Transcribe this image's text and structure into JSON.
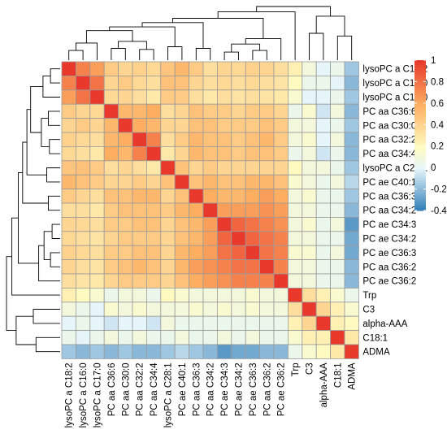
{
  "chart_data": {
    "type": "heatmap",
    "variables": [
      "lysoPC a C18:2",
      "lysoPC a C16:0",
      "lysoPC a C17:0",
      "PC aa C36:6",
      "PC aa C30:0",
      "PC aa C32:2",
      "PC aa C34:4",
      "lysoPC a C28:1",
      "PC ae C40:1",
      "PC aa C36:3",
      "PC aa C34:2",
      "PC ae C34:3",
      "PC ae C34:2",
      "PC ae C36:3",
      "PC aa C36:2",
      "PC ae C36:2",
      "Trp",
      "C3",
      "alpha-AAA",
      "C18:1",
      "ADMA"
    ],
    "values": [
      [
        1.0,
        0.75,
        0.65,
        0.45,
        0.4,
        0.42,
        0.38,
        0.48,
        0.55,
        0.45,
        0.35,
        0.4,
        0.38,
        0.42,
        0.4,
        0.35,
        0.25,
        0.1,
        0.0,
        0.05,
        -0.15
      ],
      [
        0.75,
        1.0,
        0.8,
        0.4,
        0.45,
        0.38,
        0.35,
        0.5,
        0.5,
        0.4,
        0.35,
        0.38,
        0.35,
        0.38,
        0.35,
        0.32,
        0.2,
        0.05,
        0.05,
        0.0,
        -0.2
      ],
      [
        0.65,
        0.8,
        1.0,
        0.38,
        0.4,
        0.35,
        0.3,
        0.45,
        0.45,
        0.35,
        0.3,
        0.35,
        0.32,
        0.35,
        0.32,
        0.3,
        0.15,
        0.0,
        0.0,
        0.05,
        -0.15
      ],
      [
        0.45,
        0.4,
        0.38,
        1.0,
        0.55,
        0.55,
        0.6,
        0.35,
        0.4,
        0.5,
        0.45,
        0.45,
        0.4,
        0.45,
        0.45,
        0.4,
        0.05,
        0.15,
        -0.05,
        0.1,
        -0.2
      ],
      [
        0.4,
        0.45,
        0.4,
        0.55,
        1.0,
        0.6,
        0.55,
        0.4,
        0.4,
        0.5,
        0.5,
        0.45,
        0.45,
        0.45,
        0.5,
        0.45,
        0.1,
        0.1,
        0.0,
        0.05,
        -0.15
      ],
      [
        0.42,
        0.38,
        0.35,
        0.55,
        0.6,
        1.0,
        0.75,
        0.35,
        0.45,
        0.55,
        0.5,
        0.5,
        0.45,
        0.5,
        0.55,
        0.45,
        0.1,
        0.15,
        0.0,
        0.1,
        -0.2
      ],
      [
        0.38,
        0.35,
        0.3,
        0.6,
        0.55,
        0.75,
        1.0,
        0.3,
        0.4,
        0.55,
        0.5,
        0.5,
        0.45,
        0.5,
        0.5,
        0.45,
        0.05,
        0.1,
        -0.05,
        0.05,
        -0.2
      ],
      [
        0.48,
        0.5,
        0.45,
        0.35,
        0.4,
        0.35,
        0.3,
        1.0,
        0.5,
        0.4,
        0.45,
        0.4,
        0.4,
        0.4,
        0.4,
        0.4,
        0.2,
        0.1,
        0.1,
        0.05,
        -0.15
      ],
      [
        0.55,
        0.5,
        0.45,
        0.4,
        0.4,
        0.45,
        0.4,
        0.5,
        1.0,
        0.5,
        0.55,
        0.5,
        0.5,
        0.55,
        0.55,
        0.5,
        0.15,
        0.1,
        0.05,
        0.1,
        -0.1
      ],
      [
        0.45,
        0.4,
        0.35,
        0.5,
        0.5,
        0.55,
        0.55,
        0.4,
        0.5,
        1.0,
        0.6,
        0.55,
        0.55,
        0.6,
        0.65,
        0.6,
        0.1,
        0.15,
        0.05,
        0.05,
        -0.15
      ],
      [
        0.35,
        0.35,
        0.3,
        0.45,
        0.5,
        0.5,
        0.5,
        0.45,
        0.55,
        0.6,
        1.0,
        0.65,
        0.65,
        0.65,
        0.7,
        0.65,
        0.1,
        0.1,
        0.05,
        0.05,
        -0.2
      ],
      [
        0.4,
        0.38,
        0.35,
        0.45,
        0.45,
        0.5,
        0.5,
        0.4,
        0.5,
        0.55,
        0.65,
        1.0,
        0.85,
        0.8,
        0.75,
        0.7,
        0.1,
        0.15,
        0.05,
        0.1,
        -0.3
      ],
      [
        0.38,
        0.35,
        0.32,
        0.4,
        0.45,
        0.45,
        0.45,
        0.4,
        0.5,
        0.55,
        0.65,
        0.85,
        1.0,
        0.85,
        0.8,
        0.75,
        0.1,
        0.1,
        0.05,
        0.05,
        -0.25
      ],
      [
        0.42,
        0.38,
        0.35,
        0.45,
        0.45,
        0.5,
        0.5,
        0.4,
        0.55,
        0.6,
        0.65,
        0.8,
        0.85,
        1.0,
        0.8,
        0.75,
        0.15,
        0.15,
        0.05,
        0.1,
        -0.25
      ],
      [
        0.4,
        0.35,
        0.32,
        0.45,
        0.5,
        0.55,
        0.5,
        0.4,
        0.55,
        0.65,
        0.7,
        0.75,
        0.8,
        0.8,
        1.0,
        0.75,
        0.1,
        0.1,
        0.05,
        0.05,
        -0.2
      ],
      [
        0.35,
        0.32,
        0.3,
        0.4,
        0.45,
        0.45,
        0.45,
        0.4,
        0.5,
        0.6,
        0.65,
        0.7,
        0.75,
        0.75,
        0.75,
        1.0,
        0.1,
        0.1,
        0.05,
        0.05,
        -0.2
      ],
      [
        0.25,
        0.2,
        0.15,
        0.05,
        0.1,
        0.1,
        0.05,
        0.2,
        0.15,
        0.1,
        0.1,
        0.1,
        0.1,
        0.15,
        0.1,
        0.1,
        1.0,
        0.35,
        0.25,
        0.15,
        0.05
      ],
      [
        0.1,
        0.05,
        0.0,
        0.15,
        0.1,
        0.15,
        0.1,
        0.1,
        0.1,
        0.15,
        0.1,
        0.15,
        0.1,
        0.15,
        0.1,
        0.1,
        0.35,
        1.0,
        0.4,
        0.25,
        0.15
      ],
      [
        0.0,
        0.05,
        0.0,
        -0.05,
        0.0,
        0.0,
        -0.05,
        0.1,
        0.05,
        0.05,
        0.05,
        0.05,
        0.05,
        0.05,
        0.05,
        0.05,
        0.25,
        0.4,
        1.0,
        0.25,
        0.2
      ],
      [
        0.05,
        0.0,
        0.05,
        0.1,
        0.05,
        0.1,
        0.05,
        0.05,
        0.1,
        0.05,
        0.05,
        0.1,
        0.05,
        0.1,
        0.05,
        0.05,
        0.15,
        0.25,
        0.25,
        1.0,
        0.3
      ],
      [
        -0.15,
        -0.2,
        -0.15,
        -0.2,
        -0.15,
        -0.2,
        -0.2,
        -0.15,
        -0.1,
        -0.15,
        -0.2,
        -0.3,
        -0.25,
        -0.25,
        -0.2,
        -0.2,
        0.05,
        0.15,
        0.2,
        0.3,
        1.0
      ]
    ],
    "color_scale": {
      "min": -0.4,
      "max": 1.0,
      "stops": [
        {
          "value": -0.4,
          "color": "#2c7bb6"
        },
        {
          "value": 0.0,
          "color": "#e6f5fa"
        },
        {
          "value": 0.2,
          "color": "#fffbc0"
        },
        {
          "value": 0.6,
          "color": "#fdae61"
        },
        {
          "value": 1.0,
          "color": "#e8392c"
        }
      ]
    },
    "legend": {
      "ticks": [
        1,
        0.8,
        0.6,
        0.4,
        0.2,
        0,
        -0.2,
        -0.4
      ],
      "placement": "right"
    },
    "dendrogram": {
      "merge_order": [
        [
          0,
          1
        ],
        [
          2,
          0
        ],
        [
          3,
          4
        ],
        [
          5,
          6
        ],
        [
          7,
          8
        ],
        [
          9,
          10
        ],
        [
          11,
          12
        ],
        [
          13,
          14
        ],
        [
          15,
          16
        ],
        [
          17,
          18
        ],
        [
          19,
          20
        ],
        [
          21,
          22
        ],
        [
          23,
          24
        ],
        [
          25,
          26
        ],
        [
          27,
          28
        ],
        [
          29,
          30
        ],
        [
          31,
          32
        ],
        [
          33,
          34
        ],
        [
          35,
          36
        ],
        [
          37,
          38
        ]
      ],
      "placement": "top-and-left"
    }
  }
}
